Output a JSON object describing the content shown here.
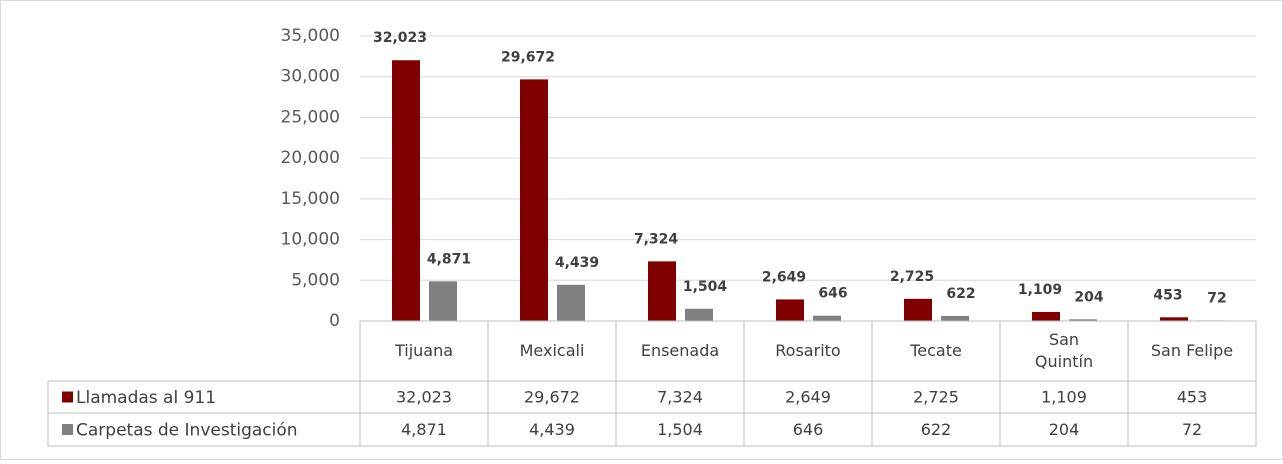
{
  "chart_data": {
    "type": "bar",
    "categories": [
      "Tijuana",
      "Mexicali",
      "Ensenada",
      "Rosarito",
      "Tecate",
      "San Quintín",
      "San Felipe"
    ],
    "series": [
      {
        "name": "Llamadas al 911",
        "color": "#800000",
        "values": [
          32023,
          29672,
          7324,
          2649,
          2725,
          1109,
          453
        ],
        "value_labels": [
          "32,023",
          "29,672",
          "7,324",
          "2,649",
          "2,725",
          "1,109",
          "453"
        ]
      },
      {
        "name": "Carpetas de Investigación",
        "color": "#808080",
        "values": [
          4871,
          4439,
          1504,
          646,
          622,
          204,
          72
        ],
        "value_labels": [
          "4,871",
          "4,439",
          "1,504",
          "646",
          "622",
          "204",
          "72"
        ]
      }
    ],
    "ylim": [
      0,
      35000
    ],
    "yticks": [
      0,
      {
        "value": 5000,
        "label": "5,000"
      },
      {
        "value": 10000,
        "label": "10,000"
      },
      {
        "value": 15000,
        "label": "15,000"
      },
      {
        "value": 20000,
        "label": "20,000"
      },
      {
        "value": 25000,
        "label": "25,000"
      },
      {
        "value": 30000,
        "label": "30,000"
      },
      {
        "value": 35000,
        "label": "35,000"
      }
    ],
    "grid": true,
    "data_table": true
  }
}
